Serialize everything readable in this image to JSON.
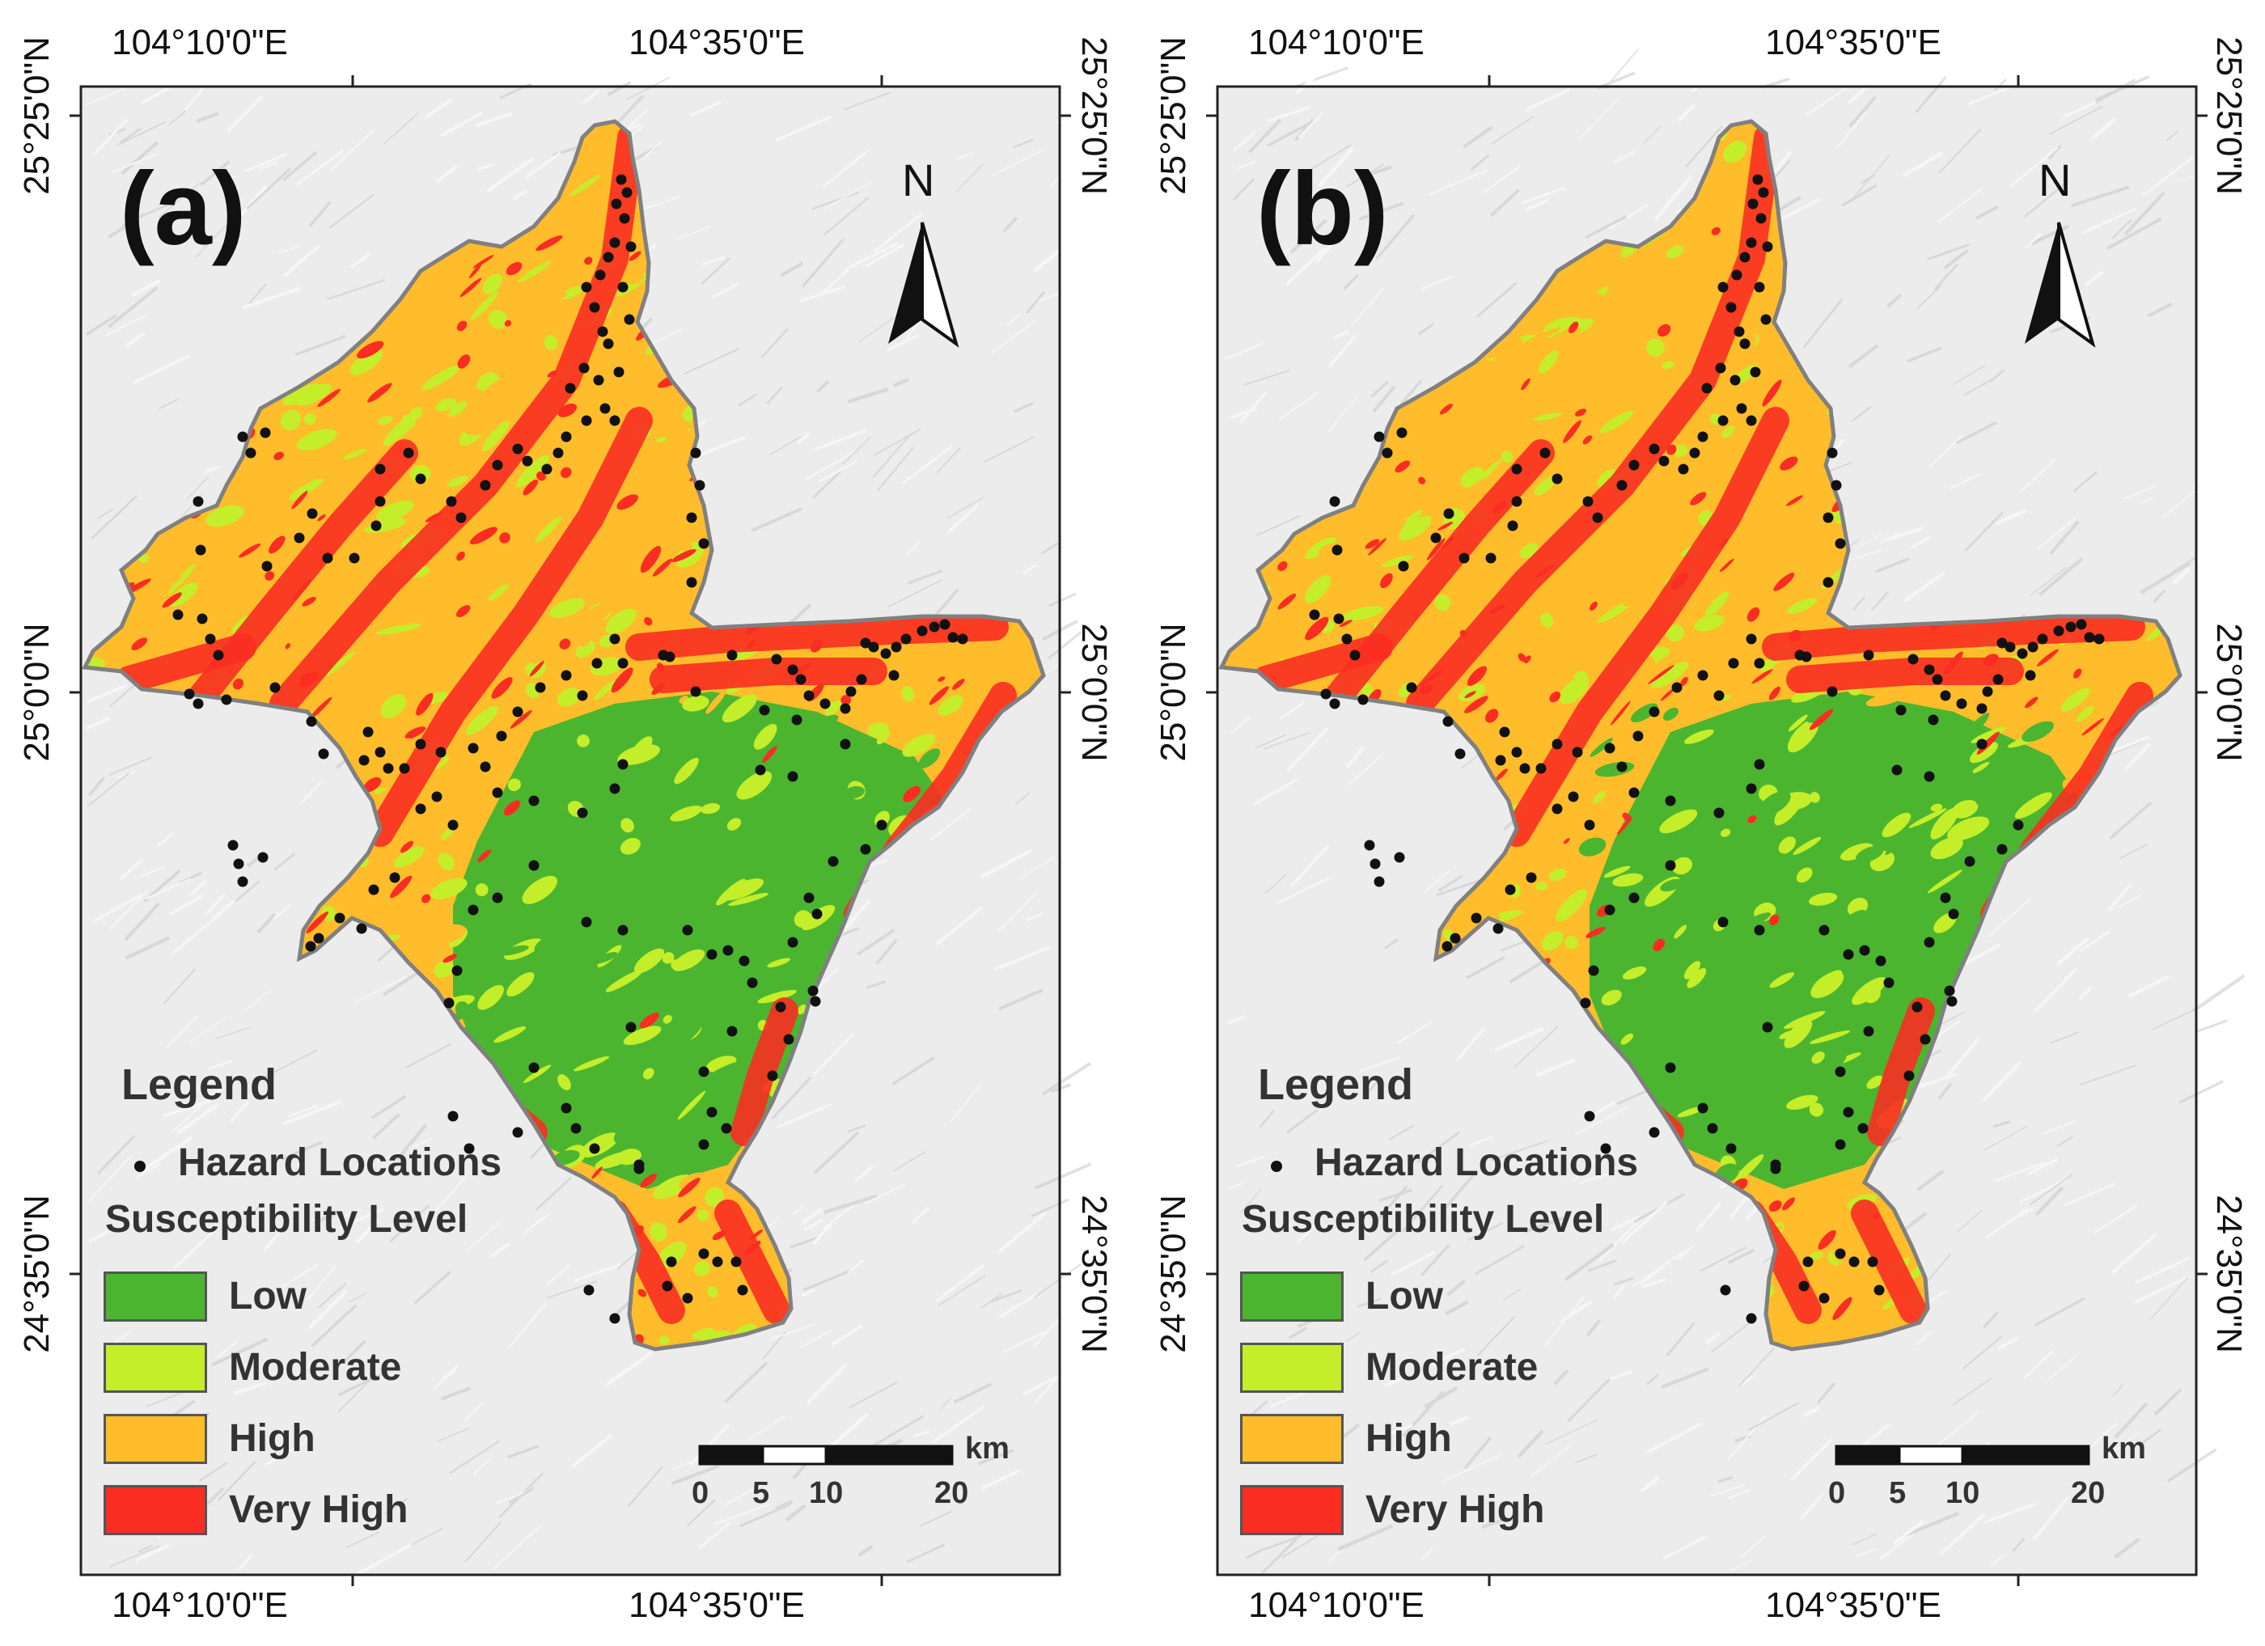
{
  "panels": [
    {
      "label": "(a)",
      "top_ticks": [
        "104°10'0\"E",
        "104°35'0\"E"
      ],
      "bottom_ticks": [
        "104°10'0\"E",
        "104°35'0\"E"
      ],
      "left_ticks": [
        "25°25'0\"N",
        "25°0'0\"N",
        "24°35'0\"N"
      ],
      "right_ticks": [
        "25°25'0\"N",
        "25°0'0\"N",
        "24°35'0\"N"
      ]
    },
    {
      "label": "(b)",
      "top_ticks": [
        "104°10'0\"E",
        "104°35'0\"E"
      ],
      "bottom_ticks": [
        "104°10'0\"E",
        "104°35'0\"E"
      ],
      "left_ticks": [
        "25°25'0\"N",
        "25°0'0\"N",
        "24°35'0\"N"
      ],
      "right_ticks": [
        "25°25'0\"N",
        "25°0'0\"N",
        "24°35'0\"N"
      ]
    }
  ],
  "north_arrow": {
    "letter": "N"
  },
  "legend": {
    "title": "Legend",
    "hazard_label": "Hazard Locations",
    "section_title": "Susceptibility Level",
    "classes": [
      {
        "label": "Low",
        "color": "#4cb530"
      },
      {
        "label": "Moderate",
        "color": "#c4ee2a"
      },
      {
        "label": "High",
        "color": "#ffbd2b"
      },
      {
        "label": "Very High",
        "color": "#fa2d22"
      }
    ]
  },
  "scale_bar": {
    "unit": "km",
    "labels": [
      "0",
      "5",
      "10",
      "20"
    ]
  },
  "colors": {
    "low": "#4cb530",
    "moderate": "#c4ee2a",
    "high": "#ffbd2b",
    "very_high": "#fa2d22",
    "hazard_point": "#111111",
    "boundary": "#808080",
    "hillshade": "#ececec"
  }
}
